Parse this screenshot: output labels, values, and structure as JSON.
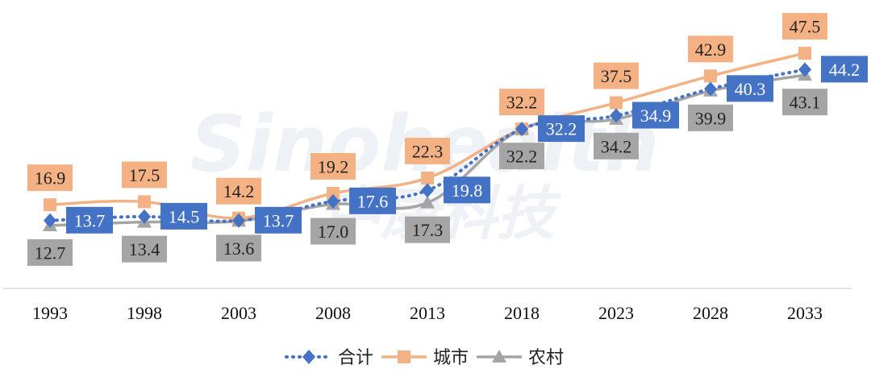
{
  "chart_data": {
    "type": "line",
    "title": "",
    "xlabel": "",
    "ylabel": "",
    "categories": [
      "1993",
      "1998",
      "2003",
      "2008",
      "2013",
      "2018",
      "2023",
      "2028",
      "2033"
    ],
    "ylim": [
      0,
      55
    ],
    "grid": false,
    "legend_position": "bottom",
    "series": [
      {
        "name": "合计",
        "key": "total",
        "color": "#4472C4",
        "line_style": "dotted",
        "marker": "diamond",
        "values": [
          13.7,
          14.5,
          13.7,
          17.6,
          19.8,
          32.2,
          34.9,
          40.3,
          44.2
        ]
      },
      {
        "name": "城市",
        "key": "urban",
        "color": "#F4B183",
        "line_style": "solid",
        "marker": "square",
        "values": [
          16.9,
          17.5,
          14.2,
          19.2,
          22.3,
          32.2,
          37.5,
          42.9,
          47.5
        ]
      },
      {
        "name": "农村",
        "key": "rural",
        "color": "#A5A5A5",
        "line_style": "solid",
        "marker": "triangle",
        "values": [
          12.7,
          13.4,
          13.6,
          17.0,
          17.3,
          32.2,
          34.2,
          39.9,
          43.1
        ]
      }
    ],
    "watermark": {
      "latin": "Sinohealth",
      "chinese": "中康科技"
    }
  }
}
